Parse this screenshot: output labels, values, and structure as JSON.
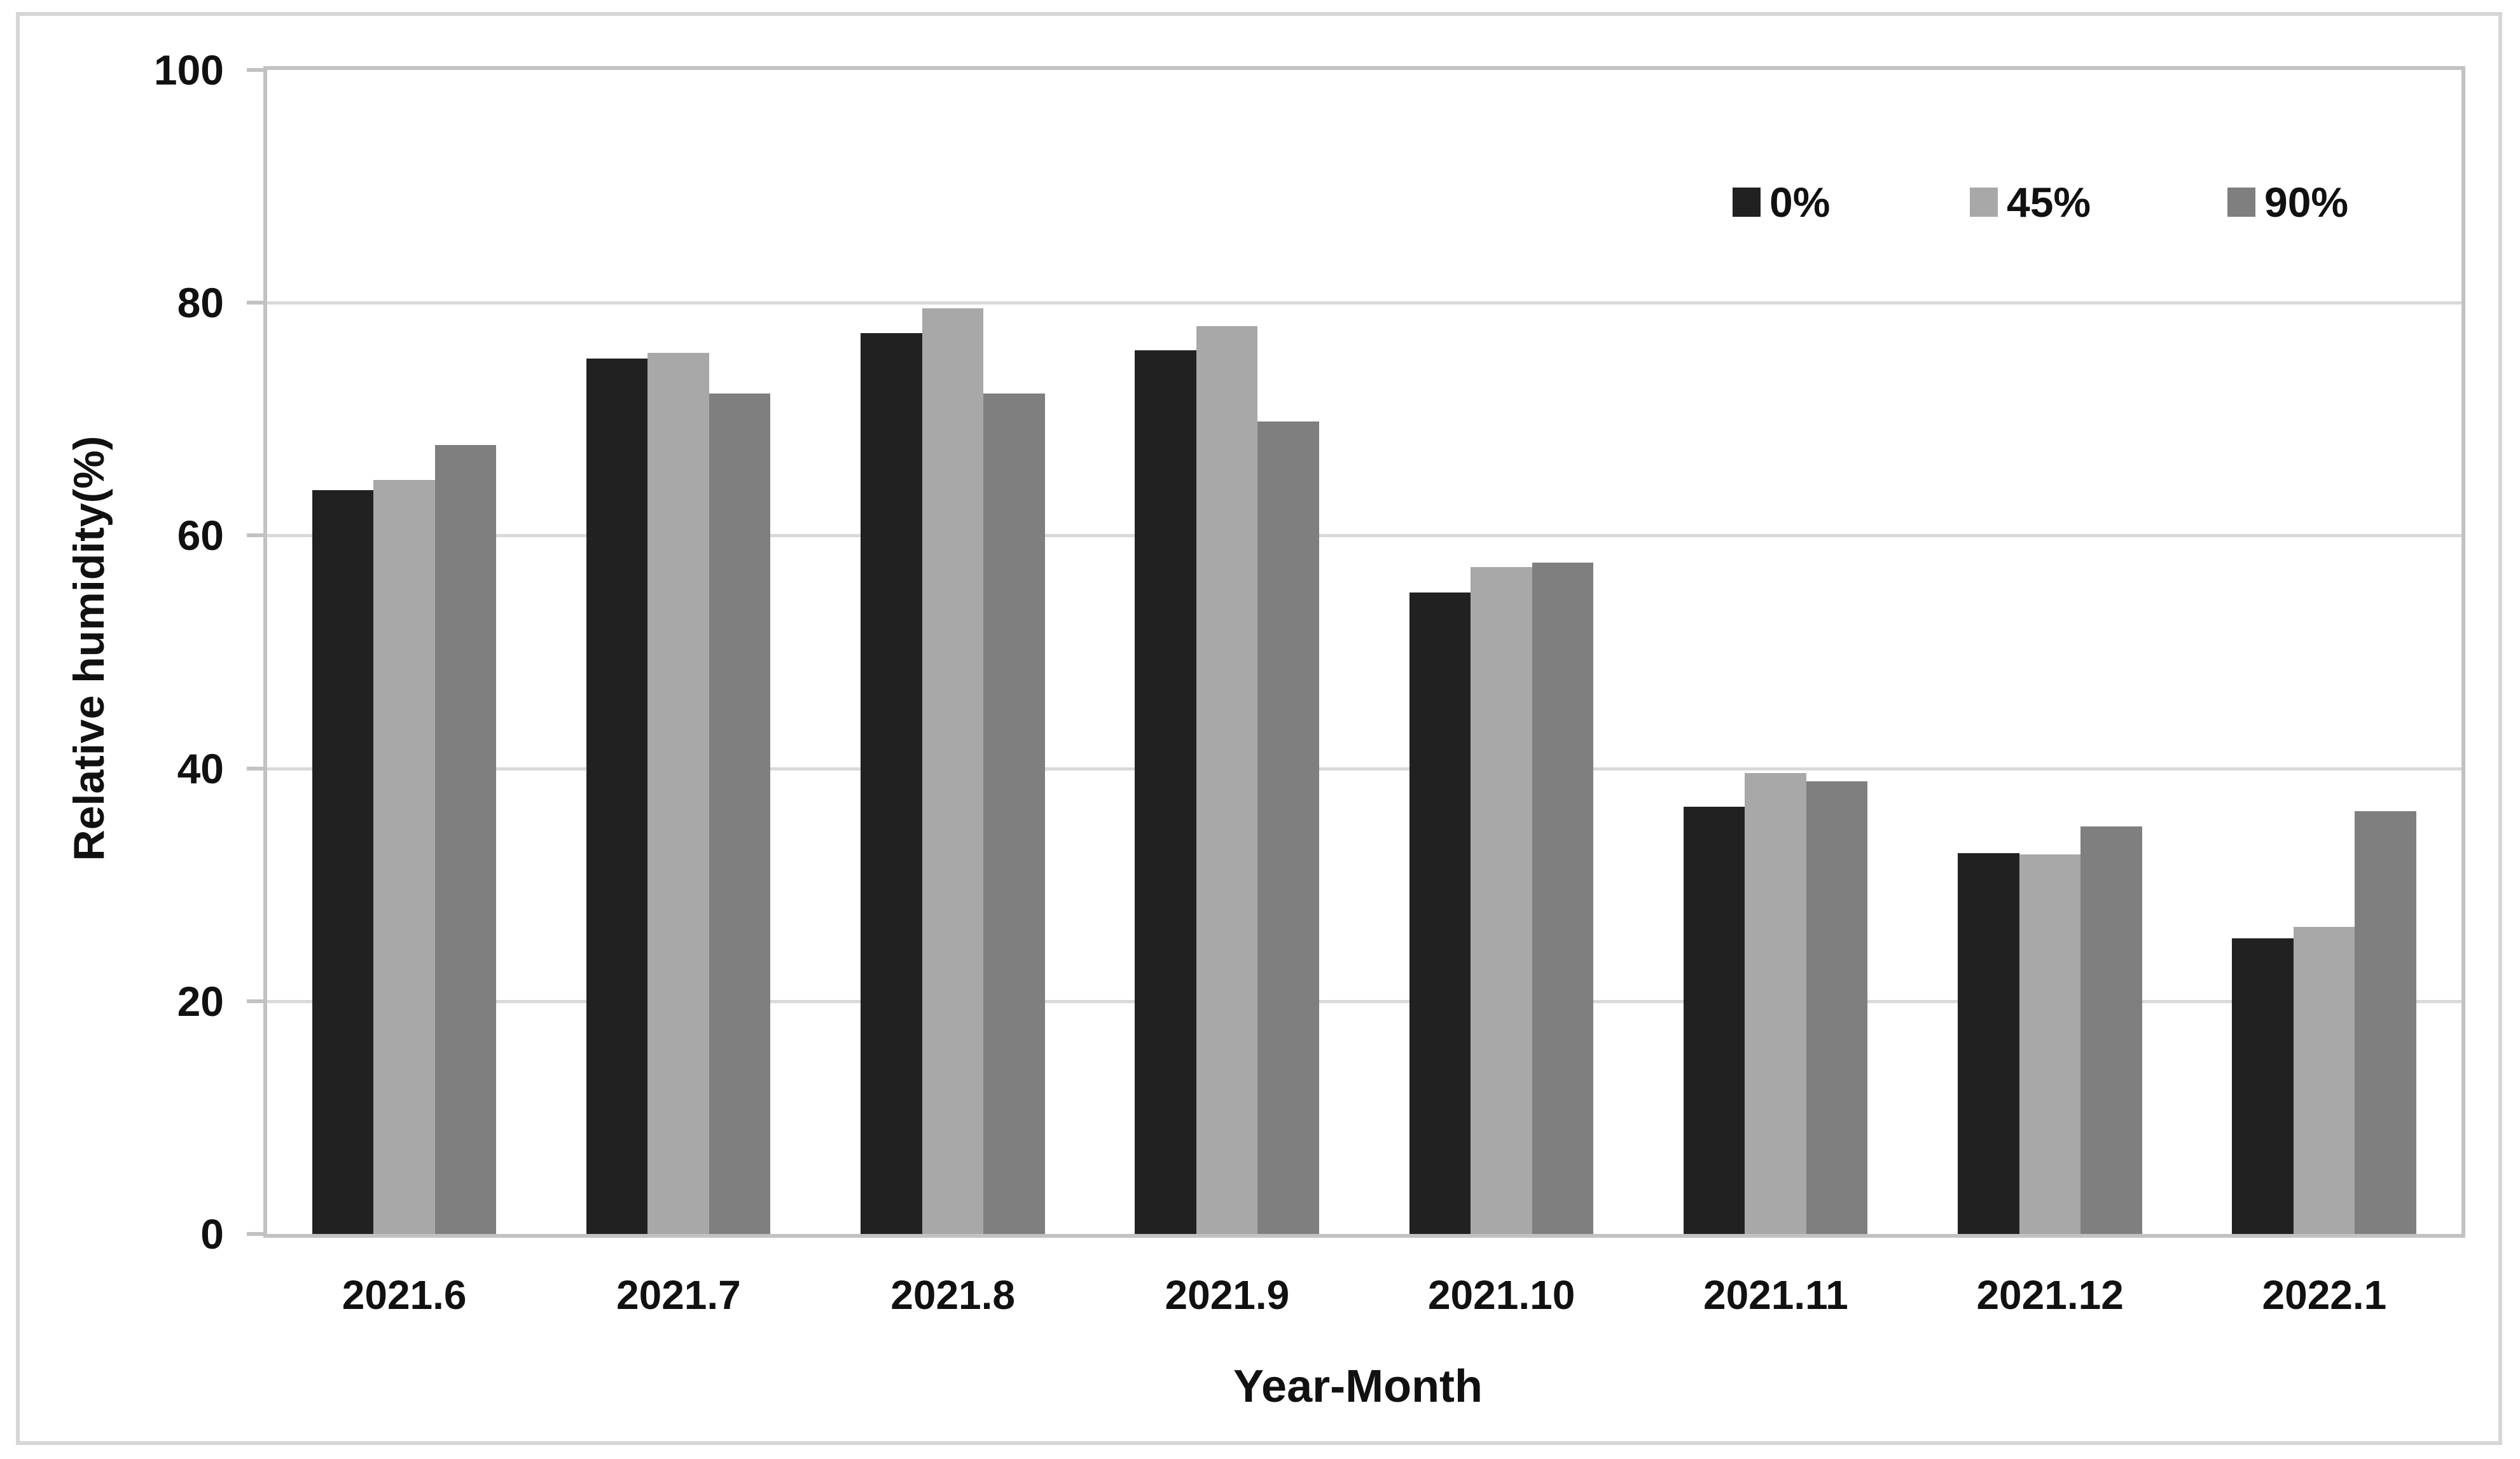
{
  "figure": {
    "background": "#ffffff",
    "frame_border_color": "#d6d6d6",
    "plot_border_color": "#c2c2c2"
  },
  "chart_data": {
    "type": "bar",
    "title": "",
    "xlabel": "Year-Month",
    "ylabel": "Relative humidity(%)",
    "categories": [
      "2021.6",
      "2021.7",
      "2021.8",
      "2021.9",
      "2021.10",
      "2021.11",
      "2021.12",
      "2022.1"
    ],
    "series": [
      {
        "name": "0%",
        "color": "#212121",
        "values": [
          63.9,
          75.2,
          77.4,
          75.9,
          55.1,
          36.7,
          32.7,
          25.4
        ]
      },
      {
        "name": "45%",
        "color": "#a8a8a8",
        "values": [
          64.8,
          75.7,
          79.5,
          78.0,
          57.3,
          39.6,
          32.6,
          26.4
        ]
      },
      {
        "name": "90%",
        "color": "#7f7f7f",
        "values": [
          67.8,
          72.2,
          72.2,
          69.8,
          57.7,
          38.9,
          35.0,
          36.3
        ]
      }
    ],
    "ylim": [
      0,
      100
    ],
    "yticks": [
      0,
      20,
      40,
      60,
      80,
      100
    ],
    "grid": "horizontal",
    "gridline_color": "#d9d9d9",
    "axis_color": "#c2c2c2",
    "legend_position": "top-right-inside"
  }
}
